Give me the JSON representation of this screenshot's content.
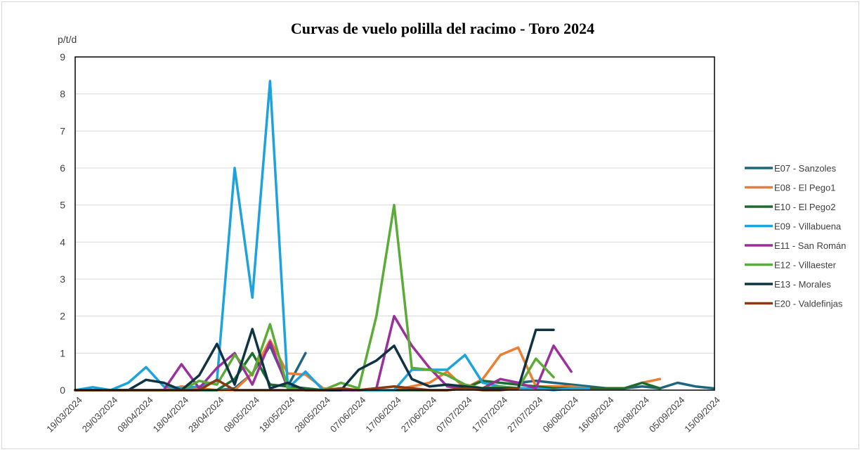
{
  "chart_data": {
    "type": "line",
    "title": "Curvas de vuelo polilla del racimo - Toro 2024",
    "ylabel": "p/t/d",
    "xlabel": "",
    "ylim": [
      0,
      9
    ],
    "yticks": [
      0,
      1,
      2,
      3,
      4,
      5,
      6,
      7,
      8,
      9
    ],
    "grid": "horizontal",
    "legend_position": "right",
    "x_tick_labels": [
      "19/03/2024",
      "29/03/2024",
      "08/04/2024",
      "18/04/2024",
      "28/04/2024",
      "08/05/2024",
      "18/05/2024",
      "28/05/2024",
      "07/06/2024",
      "17/06/2024",
      "27/06/2024",
      "07/07/2024",
      "17/07/2024",
      "27/07/2024",
      "06/08/2024",
      "16/08/2024",
      "26/08/2024",
      "05/09/2024",
      "15/09/2024"
    ],
    "x": [
      "19/03/2024",
      "24/03/2024",
      "29/03/2024",
      "03/04/2024",
      "08/04/2024",
      "13/04/2024",
      "18/04/2024",
      "23/04/2024",
      "28/04/2024",
      "03/05/2024",
      "08/05/2024",
      "13/05/2024",
      "18/05/2024",
      "23/05/2024",
      "28/05/2024",
      "02/06/2024",
      "07/06/2024",
      "12/06/2024",
      "17/06/2024",
      "22/06/2024",
      "27/06/2024",
      "02/07/2024",
      "07/07/2024",
      "12/07/2024",
      "17/07/2024",
      "22/07/2024",
      "27/07/2024",
      "01/08/2024",
      "06/08/2024",
      "11/08/2024",
      "16/08/2024",
      "21/08/2024",
      "26/08/2024",
      "31/08/2024",
      "05/09/2024",
      "10/09/2024",
      "15/09/2024"
    ],
    "series": [
      {
        "name": "E07 - Sanzoles",
        "color": "#1f6480",
        "values": [
          0,
          0,
          0,
          0,
          0,
          0,
          0,
          0,
          0,
          0.05,
          0.45,
          1.2,
          0.1,
          1.0,
          null,
          null,
          null,
          null,
          null,
          null,
          null,
          null,
          null,
          null,
          null,
          0.2,
          0.25,
          0.2,
          0.15,
          0.1,
          0.05,
          0.05,
          0.1,
          0.05,
          0.2,
          0.1,
          0.05
        ]
      },
      {
        "name": "E08 - El Pego1",
        "color": "#ed7d31",
        "values": [
          0,
          0,
          0,
          0,
          0,
          0,
          0.1,
          0.05,
          0,
          0,
          0.45,
          1.35,
          0.45,
          0.42,
          0.05,
          0,
          0,
          0,
          0,
          0.1,
          0.2,
          0.5,
          0.05,
          0.3,
          0.95,
          1.15,
          0.1,
          0.1,
          0.1,
          0.05,
          0.05,
          0.05,
          0.2,
          0.3,
          null,
          null,
          null
        ]
      },
      {
        "name": "E10 - El Pego2",
        "color": "#1e6b2e",
        "values": [
          0,
          0,
          0,
          0,
          0,
          0,
          0,
          0,
          0,
          0.3,
          1.0,
          0.15,
          0.1,
          0.05,
          0,
          0,
          0,
          0,
          0,
          0,
          0,
          0,
          0.05,
          0.25,
          0.2,
          0.15,
          0.1,
          0.05,
          0.05,
          0.05,
          0.05,
          0.05,
          0.2,
          0.05,
          null,
          null,
          null
        ]
      },
      {
        "name": "E09 - Villabuena",
        "color": "#1ca3dd",
        "values": [
          0,
          0.08,
          0,
          0.2,
          0.62,
          0.1,
          0.05,
          0.1,
          0.25,
          6.0,
          2.5,
          8.35,
          0.05,
          0.5,
          0,
          0,
          0,
          0,
          0,
          0.55,
          0.55,
          0.55,
          0.95,
          0.2,
          0.1,
          0.05,
          0.05,
          0,
          0.05,
          0.05,
          null,
          null,
          null,
          null,
          null,
          null,
          null
        ]
      },
      {
        "name": "E11 - San Román",
        "color": "#9b2f9b",
        "values": [
          0,
          0,
          0,
          0,
          0,
          0,
          0.7,
          0.05,
          0.6,
          1.0,
          0.15,
          1.3,
          0.05,
          0,
          0,
          0,
          0,
          0.05,
          2.0,
          1.2,
          0.6,
          0.1,
          0.05,
          0.05,
          0.3,
          0.2,
          0.05,
          1.2,
          0.5,
          null,
          null,
          null,
          null,
          null,
          null,
          null,
          null
        ]
      },
      {
        "name": "E12 - Villaester",
        "color": "#5aac37",
        "values": [
          0,
          0,
          0,
          0,
          0,
          0,
          0,
          0.25,
          0.15,
          0.95,
          0.4,
          1.78,
          0.05,
          0,
          0,
          0.2,
          0.05,
          2.0,
          5.0,
          0.6,
          0.55,
          0.4,
          0.15,
          0.05,
          0.1,
          0.05,
          0.85,
          0.35,
          null,
          null,
          null,
          null,
          null,
          null,
          null,
          null,
          null
        ]
      },
      {
        "name": "E13 - Morales",
        "color": "#0f3343",
        "values": [
          0,
          0,
          0,
          0,
          0.28,
          0.2,
          0,
          0.4,
          1.25,
          0.15,
          1.65,
          0.05,
          0.2,
          0,
          0,
          0,
          0.55,
          0.8,
          1.2,
          0.3,
          0.1,
          0.15,
          0.1,
          0.05,
          0.05,
          0.05,
          1.63,
          1.63,
          null,
          null,
          null,
          null,
          null,
          null,
          null,
          null,
          null
        ]
      },
      {
        "name": "E20 - Valdefinjas",
        "color": "#8b3a0f",
        "values": [
          0,
          0,
          0,
          0,
          0,
          0,
          0,
          0,
          0.28,
          0,
          0,
          0,
          0,
          0,
          0,
          0.05,
          0,
          0.05,
          0.1,
          0.05,
          0,
          0,
          0.05,
          0,
          0,
          0.05,
          null,
          null,
          null,
          null,
          null,
          null,
          null,
          null,
          null,
          null,
          null
        ]
      }
    ]
  }
}
